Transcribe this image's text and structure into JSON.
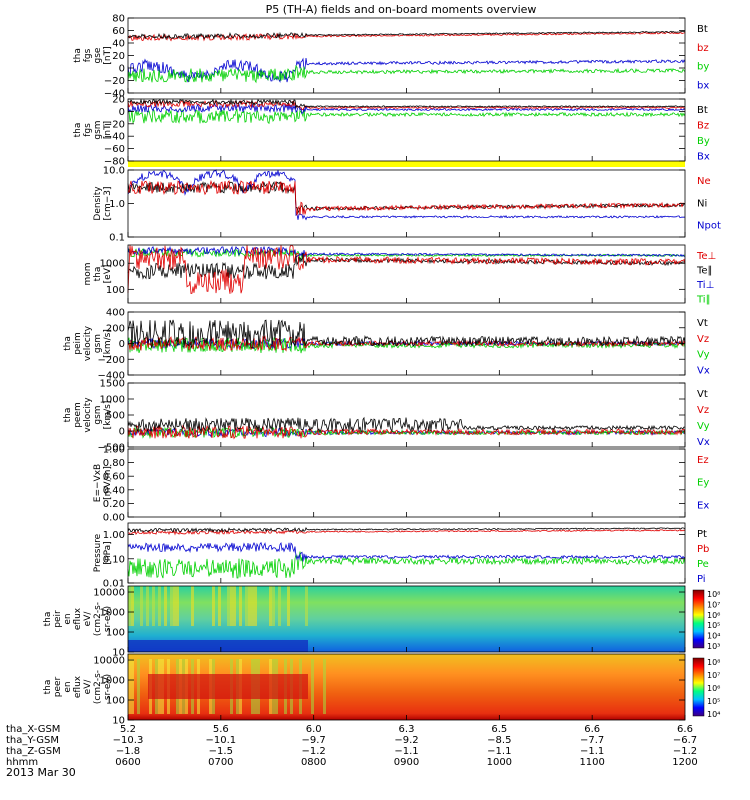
{
  "title": "P5 (TH-A) fields and on-board moments overview",
  "date_label": "2013 Mar 30",
  "colors": {
    "black": "#000000",
    "red": "#e00000",
    "green": "#00d000",
    "blue": "#0000d0",
    "yellow": "#ffff00"
  },
  "chart_data": {
    "type": "line",
    "x_range": [
      "06:00",
      "12:00"
    ],
    "panels": [
      {
        "id": "fgs_gse",
        "ylabel": [
          "tha",
          "fgs",
          "gse",
          "[nT]"
        ],
        "ylim": [
          -40,
          80
        ],
        "ticks": [
          "80",
          "60",
          "40",
          "20",
          "0",
          "−20",
          "−40"
        ],
        "tick_values": [
          80,
          60,
          40,
          20,
          0,
          -20,
          -40
        ],
        "legend": [
          "Bt",
          "bz",
          "by",
          "bx"
        ],
        "legend_colors": [
          "black",
          "red",
          "green",
          "blue"
        ]
      },
      {
        "id": "fgs_gsm",
        "ylabel": [
          "tha",
          "fgs",
          "gsm",
          "[nT]"
        ],
        "ylim": [
          -80,
          20
        ],
        "ticks": [
          "20",
          "0",
          "−20",
          "−40",
          "−60",
          "−80"
        ],
        "tick_values": [
          20,
          0,
          -20,
          -40,
          -60,
          -80
        ],
        "legend": [
          "Bt",
          "Bz",
          "By",
          "Bx"
        ],
        "legend_colors": [
          "black",
          "red",
          "green",
          "blue"
        ]
      },
      {
        "id": "density",
        "ylabel": [
          "Density",
          "[cm−3]"
        ],
        "log": true,
        "ylim": [
          0.1,
          10
        ],
        "ticks": [
          "10.0",
          "1.0",
          "0.1"
        ],
        "tick_values": [
          10,
          1,
          0.1
        ],
        "legend": [
          "Ne",
          "Ni",
          "Npot"
        ],
        "legend_colors": [
          "red",
          "black",
          "blue"
        ]
      },
      {
        "id": "temperature",
        "ylabel": [
          "mom",
          "tha",
          "[eV]"
        ],
        "log": true,
        "ylim": [
          30,
          5000
        ],
        "ticks": [
          "1000",
          "100"
        ],
        "tick_values": [
          1000,
          100
        ],
        "legend": [
          "Te⊥",
          "Te∥",
          "Ti⊥",
          "Ti∥"
        ],
        "legend_colors": [
          "red",
          "black",
          "blue",
          "green"
        ]
      },
      {
        "id": "peim_velocity",
        "ylabel": [
          "tha",
          "peim",
          "velocity",
          "gsm",
          "[km/s]"
        ],
        "ylim": [
          -400,
          400
        ],
        "ticks": [
          "400",
          "200",
          "0",
          "−200",
          "−400"
        ],
        "tick_values": [
          400,
          200,
          0,
          -200,
          -400
        ],
        "legend": [
          "Vt",
          "Vz",
          "Vy",
          "Vx"
        ],
        "legend_colors": [
          "black",
          "red",
          "green",
          "blue"
        ]
      },
      {
        "id": "peem_velocity",
        "ylabel": [
          "tha",
          "peem",
          "velocity",
          "gsm",
          "[km/s]"
        ],
        "ylim": [
          -500,
          1500
        ],
        "ticks": [
          "1500",
          "1000",
          "500",
          "0",
          "−500"
        ],
        "tick_values": [
          1500,
          1000,
          500,
          0,
          -500
        ],
        "legend": [
          "Vt",
          "Vz",
          "Vy",
          "Vx"
        ],
        "legend_colors": [
          "black",
          "red",
          "green",
          "blue"
        ]
      },
      {
        "id": "efield",
        "ylabel": [
          "E=−VxB",
          "[mV/m]"
        ],
        "ylim": [
          0,
          1
        ],
        "ticks": [
          "1.00",
          "0.80",
          "0.60",
          "0.40",
          "0.20",
          "0.00"
        ],
        "tick_values": [
          1,
          0.8,
          0.6,
          0.4,
          0.2,
          0
        ],
        "legend": [
          "Ez",
          "Ey",
          "Ex"
        ],
        "legend_colors": [
          "red",
          "green",
          "blue"
        ]
      },
      {
        "id": "pressure",
        "ylabel": [
          "Pressure",
          "[nPa]"
        ],
        "log": true,
        "ylim": [
          0.01,
          3
        ],
        "ticks": [
          "1.00",
          "0.10",
          "0.01"
        ],
        "tick_values": [
          1,
          0.1,
          0.01
        ],
        "legend": [
          "Pt",
          "Pb",
          "Pe",
          "Pi"
        ],
        "legend_colors": [
          "black",
          "red",
          "green",
          "blue"
        ]
      },
      {
        "id": "peir_spec",
        "ylabel": [
          "tha",
          "peir",
          "en",
          "eflux",
          "eV/",
          "(cm2-s-",
          "sr-eV)"
        ],
        "log": true,
        "ylim": [
          10,
          20000
        ],
        "ticks": [
          "10000",
          "1000",
          "100",
          "10"
        ],
        "tick_values": [
          10000,
          1000,
          100,
          10
        ],
        "colorbar": [
          "10⁸",
          "10⁷",
          "10⁶",
          "10⁵",
          "10⁴",
          "10³"
        ]
      },
      {
        "id": "peer_spec",
        "ylabel": [
          "tha",
          "peer",
          "en",
          "eflux",
          "eV/",
          "(cm2-s-",
          "sr-eV)"
        ],
        "log": true,
        "ylim": [
          10,
          20000
        ],
        "ticks": [
          "10000",
          "1000",
          "100",
          "10"
        ],
        "tick_values": [
          10000,
          1000,
          100,
          10
        ],
        "colorbar": [
          "10⁸",
          "10⁷",
          "10⁶",
          "10⁵",
          "10⁴"
        ]
      }
    ],
    "x_axis": {
      "row_labels": [
        "tha_X-GSM",
        "tha_Y-GSM",
        "tha_Z-GSM",
        "hhmm"
      ],
      "columns": [
        [
          "5.2",
          "−10.3",
          "−1.8",
          "0600"
        ],
        [
          "5.6",
          "−10.1",
          "−1.5",
          "0700"
        ],
        [
          "6.0",
          "−9.7",
          "−1.2",
          "0800"
        ],
        [
          "6.3",
          "−9.2",
          "−1.1",
          "0900"
        ],
        [
          "6.5",
          "−8.5",
          "−1.1",
          "1000"
        ],
        [
          "6.6",
          "−7.7",
          "−1.1",
          "1100"
        ],
        [
          "6.6",
          "−6.7",
          "−1.2",
          "1200"
        ]
      ]
    }
  }
}
